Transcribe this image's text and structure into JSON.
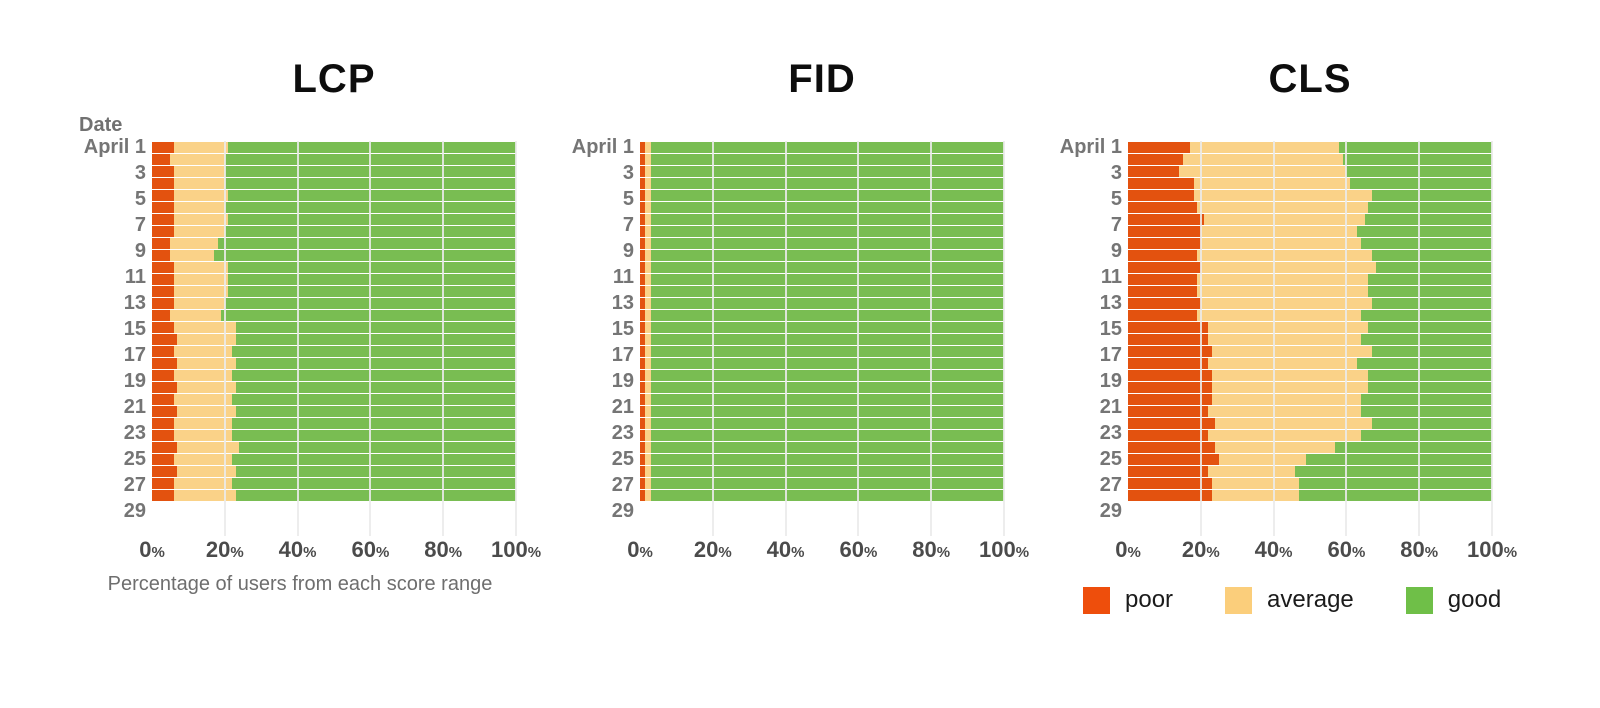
{
  "legend": {
    "items": [
      {
        "label": "poor",
        "color": "#EE4E0C"
      },
      {
        "label": "average",
        "color": "#FBCE7B"
      },
      {
        "label": "good",
        "color": "#6FBF48"
      }
    ]
  },
  "axis": {
    "x_ticks": [
      "0",
      "20",
      "40",
      "60",
      "80",
      "100"
    ],
    "percent_suffix": "%",
    "gridline_values": [
      20,
      40,
      60,
      80,
      100
    ]
  },
  "chart_data": [
    {
      "type": "bar",
      "stacked": true,
      "orientation": "horizontal",
      "title": "LCP",
      "y_header": "Date",
      "x_title": "Percentage of users from each score range",
      "xlim": [
        0,
        100
      ],
      "categories": [
        "April 1",
        "",
        "3",
        "",
        "5",
        "",
        "7",
        "",
        "9",
        "",
        "11",
        "",
        "13",
        "",
        "15",
        "",
        "17",
        "",
        "19",
        "",
        "21",
        "",
        "23",
        "",
        "25",
        "",
        "27",
        "",
        "29",
        ""
      ],
      "series": [
        {
          "name": "poor",
          "color": "#E3520F",
          "values": [
            6,
            5,
            6,
            6,
            6,
            6,
            6,
            6,
            5,
            5,
            6,
            6,
            6,
            6,
            5,
            6,
            7,
            6,
            7,
            6,
            7,
            6,
            7,
            6,
            6,
            7,
            6,
            7,
            6,
            6
          ]
        },
        {
          "name": "average",
          "color": "#FAD288",
          "values": [
            15,
            15,
            14,
            14,
            15,
            14,
            15,
            14,
            13,
            12,
            15,
            15,
            15,
            14,
            14,
            17,
            16,
            16,
            16,
            16,
            16,
            16,
            16,
            16,
            16,
            17,
            16,
            16,
            16,
            17
          ]
        },
        {
          "name": "good",
          "color": "#79BD52",
          "values": [
            79,
            80,
            80,
            80,
            79,
            80,
            79,
            80,
            82,
            83,
            79,
            79,
            79,
            80,
            81,
            77,
            77,
            78,
            77,
            78,
            77,
            78,
            77,
            78,
            78,
            76,
            78,
            77,
            78,
            77
          ]
        }
      ]
    },
    {
      "type": "bar",
      "stacked": true,
      "orientation": "horizontal",
      "title": "FID",
      "y_header": "",
      "x_title": "",
      "xlim": [
        0,
        100
      ],
      "categories": [
        "April 1",
        "",
        "3",
        "",
        "5",
        "",
        "7",
        "",
        "9",
        "",
        "11",
        "",
        "13",
        "",
        "15",
        "",
        "17",
        "",
        "19",
        "",
        "21",
        "",
        "23",
        "",
        "25",
        "",
        "27",
        "",
        "29",
        ""
      ],
      "series": [
        {
          "name": "poor",
          "color": "#E3520F",
          "values": [
            1.4,
            1.4,
            1.4,
            1.4,
            1.4,
            1.4,
            1.4,
            1.4,
            1.4,
            1.4,
            1.4,
            1.4,
            1.4,
            1.4,
            1.4,
            1.4,
            1.4,
            1.4,
            1.4,
            1.4,
            1.4,
            1.4,
            1.4,
            1.4,
            1.4,
            1.4,
            1.4,
            1.4,
            1.4,
            1.4
          ]
        },
        {
          "name": "average",
          "color": "#FAD288",
          "values": [
            1.6,
            1.6,
            1.6,
            1.6,
            1.6,
            1.6,
            1.6,
            1.6,
            1.6,
            1.6,
            1.6,
            1.6,
            1.6,
            1.6,
            1.6,
            1.6,
            1.6,
            1.6,
            1.6,
            1.6,
            1.6,
            1.6,
            1.6,
            1.6,
            1.6,
            1.6,
            1.6,
            1.6,
            1.6,
            1.6
          ]
        },
        {
          "name": "good",
          "color": "#79BD52",
          "values": [
            97,
            97,
            97,
            97,
            97,
            97,
            97,
            97,
            97,
            97,
            97,
            97,
            97,
            97,
            97,
            97,
            97,
            97,
            97,
            97,
            97,
            97,
            97,
            97,
            97,
            97,
            97,
            97,
            97,
            97
          ]
        }
      ]
    },
    {
      "type": "bar",
      "stacked": true,
      "orientation": "horizontal",
      "title": "CLS",
      "y_header": "",
      "x_title": "",
      "xlim": [
        0,
        100
      ],
      "categories": [
        "April 1",
        "",
        "3",
        "",
        "5",
        "",
        "7",
        "",
        "9",
        "",
        "11",
        "",
        "13",
        "",
        "15",
        "",
        "17",
        "",
        "19",
        "",
        "21",
        "",
        "23",
        "",
        "25",
        "",
        "27",
        "",
        "29",
        ""
      ],
      "series": [
        {
          "name": "poor",
          "color": "#E3520F",
          "values": [
            17,
            15,
            14,
            18,
            18,
            19,
            21,
            20,
            20,
            19,
            20,
            19,
            19,
            20,
            19,
            22,
            22,
            23,
            22,
            23,
            23,
            23,
            22,
            24,
            22,
            24,
            25,
            22,
            23,
            23
          ]
        },
        {
          "name": "average",
          "color": "#FAD288",
          "values": [
            41,
            44,
            46,
            43,
            49,
            47,
            44,
            43,
            44,
            48,
            48,
            47,
            47,
            47,
            45,
            44,
            42,
            44,
            41,
            43,
            43,
            41,
            42,
            43,
            42,
            33,
            24,
            24,
            24,
            24
          ]
        },
        {
          "name": "good",
          "color": "#79BD52",
          "values": [
            42,
            41,
            40,
            39,
            33,
            34,
            35,
            37,
            36,
            33,
            32,
            34,
            34,
            33,
            36,
            34,
            36,
            33,
            37,
            34,
            34,
            36,
            36,
            33,
            36,
            43,
            51,
            54,
            53,
            53
          ]
        }
      ]
    }
  ]
}
